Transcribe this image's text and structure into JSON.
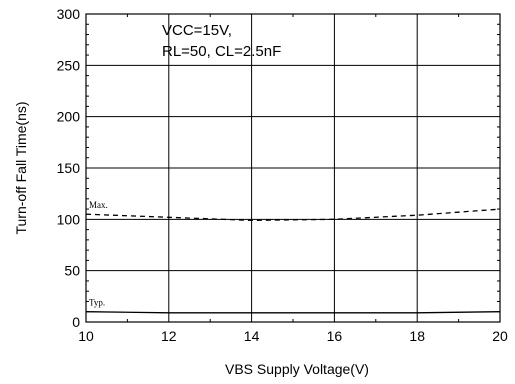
{
  "chart_data": {
    "type": "line",
    "xlabel": "VBS  Supply Voltage(V)",
    "ylabel": "Turn-off Fall Time(ns)",
    "xlim": [
      10,
      20
    ],
    "ylim": [
      0,
      300
    ],
    "xticks": [
      10,
      12,
      14,
      16,
      18,
      20
    ],
    "yticks": [
      0,
      50,
      100,
      150,
      200,
      250,
      300
    ],
    "grid": true,
    "annotations": [
      "VCC=15V,",
      "RL=50, CL=2.5nF"
    ],
    "series": [
      {
        "name": "Max.",
        "style": "dashed",
        "x": [
          10,
          12,
          14,
          16,
          18,
          20
        ],
        "y": [
          105,
          102,
          99,
          100,
          104,
          110
        ]
      },
      {
        "name": "Typ.",
        "style": "solid",
        "x": [
          10,
          12,
          14,
          16,
          18,
          20
        ],
        "y": [
          10,
          9,
          9,
          9,
          9,
          10
        ]
      }
    ]
  }
}
